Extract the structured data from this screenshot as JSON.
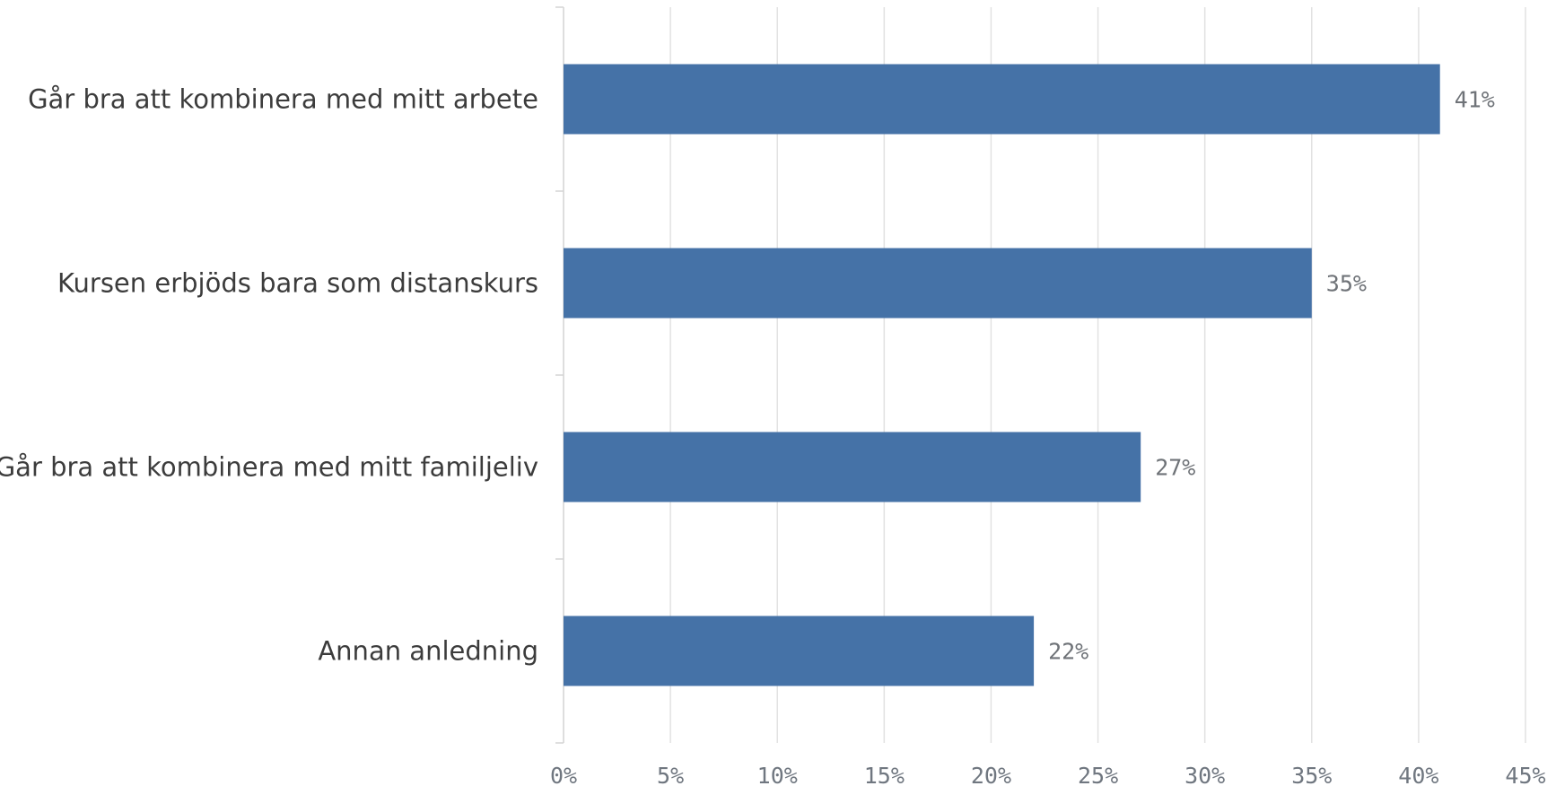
{
  "chart_data": {
    "type": "bar",
    "orientation": "horizontal",
    "categories": [
      "Går bra att kombinera med mitt arbete",
      "Kursen erbjöds bara som distanskurs",
      "Går bra att kombinera med mitt familjeliv",
      "Annan anledning"
    ],
    "values": [
      41,
      35,
      27,
      22
    ],
    "value_labels": [
      "41%",
      "35%",
      "27%",
      "22%"
    ],
    "xlim": [
      0,
      45
    ],
    "xticks": [
      0,
      5,
      10,
      15,
      20,
      25,
      30,
      35,
      40,
      45
    ],
    "xtick_labels": [
      "0%",
      "5%",
      "10%",
      "15%",
      "20%",
      "25%",
      "30%",
      "35%",
      "40%",
      "45%"
    ],
    "title": "",
    "xlabel": "",
    "ylabel": "",
    "grid": true,
    "legend": "none",
    "colors": {
      "bar": "#4572a7",
      "grid": "#e2e2e2",
      "axis": "#d4d4d4"
    }
  }
}
